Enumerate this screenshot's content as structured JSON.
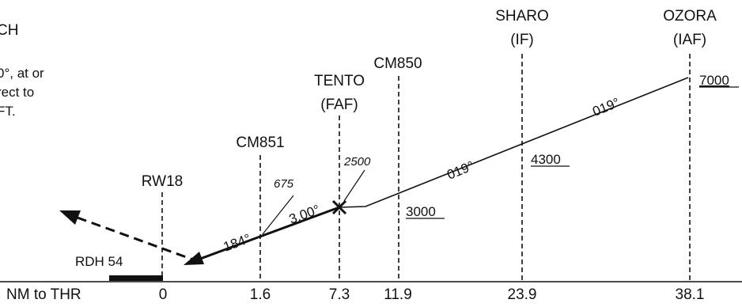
{
  "note_lines": [
    "CH",
    "0°, at or",
    "rect to",
    "FT."
  ],
  "fixes": [
    {
      "name": "RW18",
      "role": ""
    },
    {
      "name": "CM851",
      "role": ""
    },
    {
      "name": "TENTO",
      "role": "(FAF)"
    },
    {
      "name": "CM850",
      "role": ""
    },
    {
      "name": "SHARO",
      "role": "(IF)"
    },
    {
      "name": "OZORA",
      "role": "(IAF)"
    }
  ],
  "altitudes": {
    "ozora": "7000",
    "sharo": "4300",
    "cm850": "3000",
    "tento": "2500",
    "cm851": "675"
  },
  "courses": {
    "initial": "019°",
    "intermediate": "019°",
    "final": "184°"
  },
  "glidepath": "3.00°",
  "rdh": "RDH 54",
  "distance_axis": {
    "label": "NM to THR",
    "values": [
      "0",
      "1.6",
      "7.3",
      "11.9",
      "23.9",
      "38.1"
    ]
  }
}
